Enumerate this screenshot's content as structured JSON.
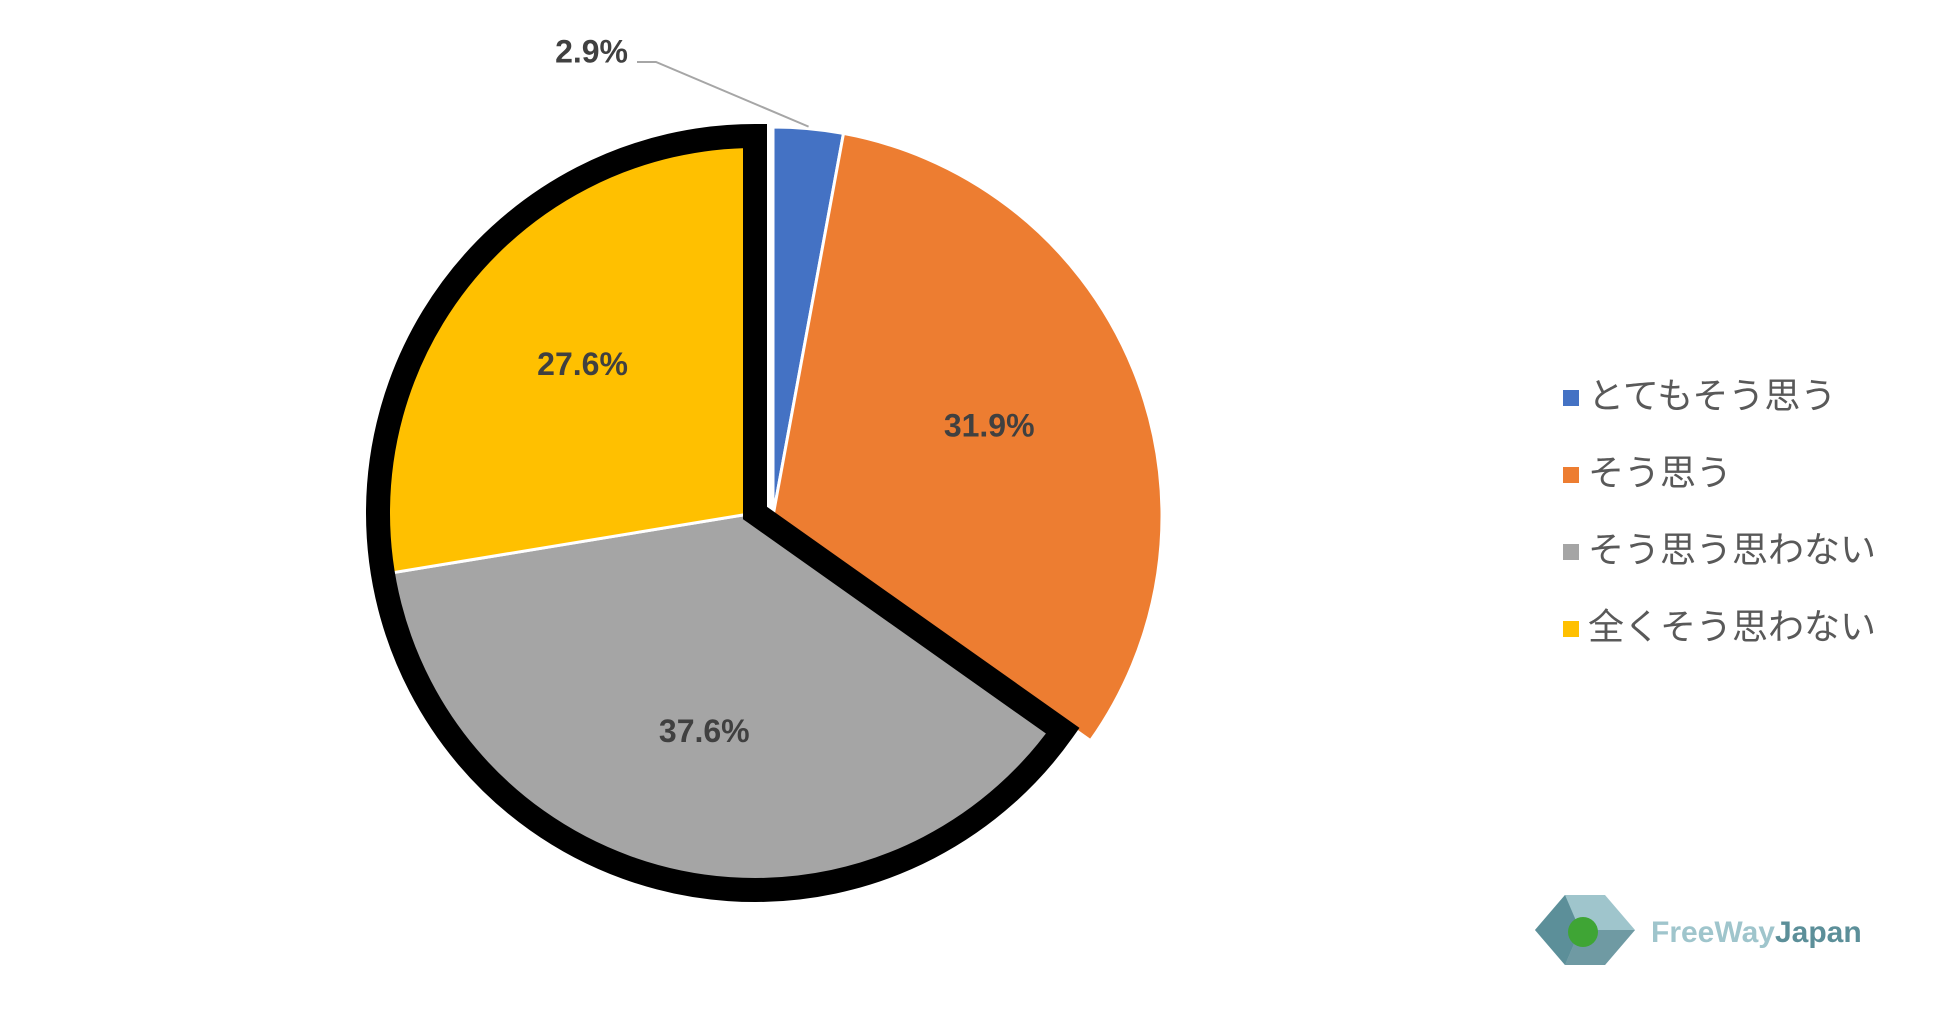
{
  "chart_data": {
    "type": "pie",
    "categories": [
      "とてもそう思う",
      "そう思う",
      "そう思う思わない",
      "全くそう思わない"
    ],
    "values": [
      2.9,
      31.9,
      37.6,
      27.6
    ],
    "value_labels": [
      "2.9%",
      "31.9%",
      "37.6%",
      "27.6%"
    ],
    "colors": [
      "#4472c4",
      "#ed7d31",
      "#a5a5a5",
      "#ffc000"
    ],
    "legend": "right"
  },
  "logo": {
    "text1": "FreeWay",
    "text2": "Japan"
  }
}
